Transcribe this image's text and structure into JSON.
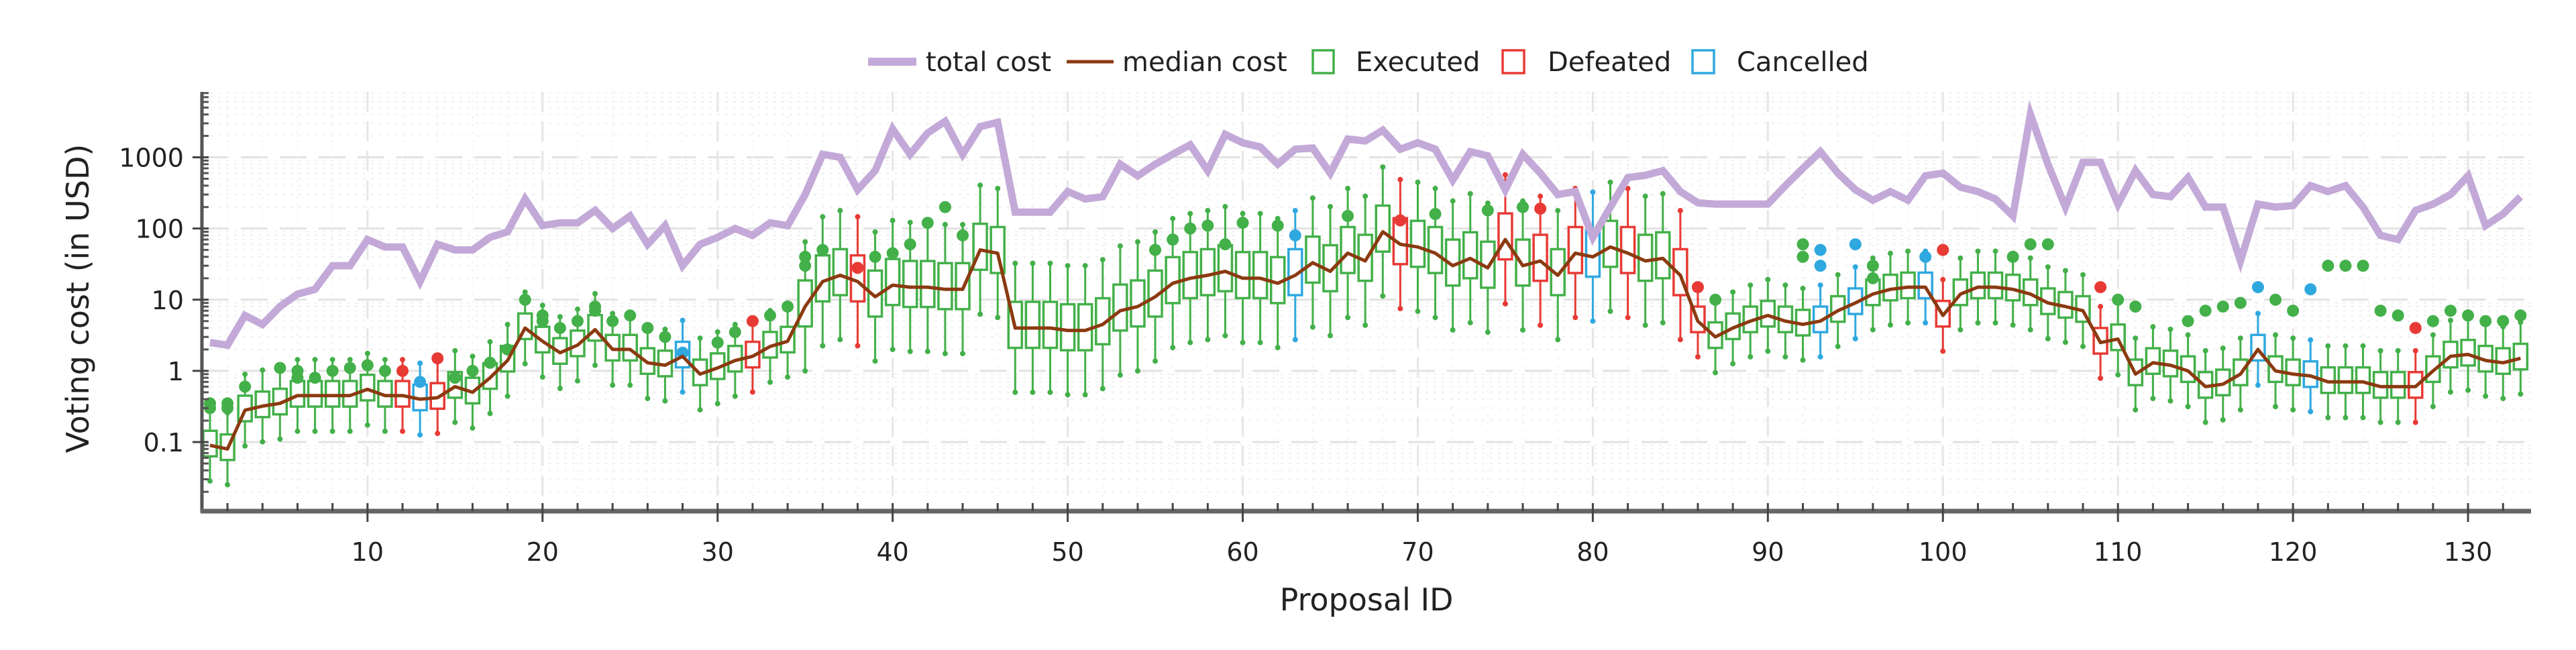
{
  "chart_data": {
    "type": "box+line",
    "title": "",
    "xlabel": "Proposal ID",
    "ylabel": "Voting cost (in USD)",
    "yscale": "log",
    "xlim": [
      0.54,
      133.6
    ],
    "ylim": [
      0.0107,
      8300
    ],
    "grid": true,
    "legend_position": "top-center",
    "x_ticks": [
      10,
      20,
      30,
      40,
      50,
      60,
      70,
      80,
      90,
      100,
      110,
      120,
      130
    ],
    "x_tick_labels": [
      "10",
      "20",
      "30",
      "40",
      "50",
      "60",
      "70",
      "80",
      "90",
      "100",
      "110",
      "120",
      "130"
    ],
    "y_ticks": [
      0.1,
      1,
      10,
      100,
      1000
    ],
    "y_tick_labels": [
      "0.1",
      "1",
      "10",
      "100",
      "1000"
    ],
    "legend": [
      {
        "key": "total",
        "label": "total cost",
        "kind": "line",
        "color": "#c3a9d8"
      },
      {
        "key": "median",
        "label": "median cost",
        "kind": "line",
        "color": "#8b3a10"
      },
      {
        "key": "Executed",
        "label": "Executed",
        "kind": "box",
        "color": "#43b049"
      },
      {
        "key": "Defeated",
        "label": "Defeated",
        "kind": "box",
        "color": "#e83a35"
      },
      {
        "key": "Cancelled",
        "label": "Cancelled",
        "kind": "box",
        "color": "#2fa8e0"
      }
    ],
    "total_cost": [
      2.5,
      2.3,
      6,
      4.5,
      8,
      12,
      14,
      30,
      30,
      70,
      55,
      55,
      18,
      60,
      50,
      50,
      75,
      90,
      260,
      110,
      120,
      120,
      180,
      100,
      150,
      60,
      110,
      30,
      60,
      75,
      100,
      80,
      120,
      110,
      300,
      1100,
      1000,
      350,
      650,
      2500,
      1100,
      2200,
      3200,
      1100,
      2700,
      3100,
      170,
      170,
      170,
      330,
      260,
      280,
      800,
      550,
      800,
      1100,
      1500,
      650,
      2100,
      1600,
      1400,
      800,
      1300,
      1350,
      600,
      1800,
      1700,
      2400,
      1300,
      1600,
      1300,
      480,
      1200,
      1050,
      350,
      1100,
      600,
      300,
      330,
      75,
      200,
      520,
      560,
      650,
      330,
      230,
      220,
      220,
      220,
      220,
      400,
      700,
      1200,
      600,
      350,
      250,
      330,
      250,
      550,
      600,
      380,
      330,
      260,
      150,
      4000,
      800,
      200,
      850,
      850,
      220,
      650,
      300,
      280,
      520,
      200,
      200,
      35,
      220,
      200,
      210,
      400,
      330,
      400,
      200,
      80,
      70,
      180,
      220,
      300,
      550,
      110,
      160,
      280
    ],
    "median_cost": [
      0.09,
      0.08,
      0.28,
      0.32,
      0.35,
      0.45,
      0.45,
      0.45,
      0.45,
      0.55,
      0.45,
      0.45,
      0.4,
      0.42,
      0.6,
      0.5,
      0.8,
      1.4,
      4,
      2.6,
      1.8,
      2.3,
      3.8,
      2,
      2,
      1.3,
      1.2,
      1.6,
      0.9,
      1.1,
      1.4,
      1.6,
      2.2,
      2.6,
      8,
      18,
      22,
      18,
      11,
      16,
      15,
      15,
      14,
      14,
      50,
      45,
      4,
      4,
      4,
      3.7,
      3.7,
      4.5,
      7,
      8,
      11,
      17,
      20,
      22,
      25,
      20,
      20,
      17,
      22,
      33,
      25,
      45,
      35,
      90,
      60,
      55,
      45,
      30,
      38,
      28,
      70,
      30,
      35,
      22,
      45,
      40,
      55,
      45,
      35,
      38,
      22,
      5,
      3,
      4,
      5,
      6,
      5,
      4.5,
      5,
      7,
      9,
      12,
      14,
      15,
      15,
      6,
      12,
      15,
      15,
      14,
      12,
      9,
      8,
      7,
      2.5,
      2.8,
      0.9,
      1.3,
      1.2,
      1.0,
      0.6,
      0.65,
      0.9,
      2,
      1.0,
      0.9,
      0.85,
      0.7,
      0.7,
      0.7,
      0.6,
      0.6,
      0.6,
      1.0,
      1.6,
      1.7,
      1.4,
      1.3,
      1.5
    ],
    "status": {
      "Defeated": [
        12,
        14,
        32,
        38,
        69,
        75,
        77,
        79,
        82,
        85,
        86,
        100,
        109,
        127
      ],
      "Cancelled": [
        13,
        28,
        63,
        80,
        93,
        95,
        99,
        118,
        121
      ]
    },
    "box_spread": {
      "note_q1_factor": 0.7,
      "note_q3_factor": 1.6
    },
    "outliers": {
      "1": [
        0.3,
        0.35
      ],
      "2": [
        0.3,
        0.35
      ],
      "3": [
        0.6
      ],
      "5": [
        1.1
      ],
      "6": [
        0.8,
        1.0
      ],
      "7": [
        0.8
      ],
      "8": [
        1.0
      ],
      "9": [
        1.1
      ],
      "10": [
        1.2
      ],
      "11": [
        1.0
      ],
      "12": [
        1.0
      ],
      "13": [
        0.7
      ],
      "14": [
        1.5
      ],
      "15": [
        0.8
      ],
      "16": [
        1.0
      ],
      "17": [
        1.3
      ],
      "18": [
        2.0
      ],
      "19": [
        10
      ],
      "20": [
        5,
        6
      ],
      "21": [
        4
      ],
      "22": [
        5
      ],
      "23": [
        7,
        8
      ],
      "24": [
        5
      ],
      "25": [
        6
      ],
      "26": [
        4
      ],
      "27": [
        3
      ],
      "28": [
        1.8
      ],
      "30": [
        2.5
      ],
      "31": [
        3.5
      ],
      "32": [
        5
      ],
      "33": [
        6
      ],
      "34": [
        8
      ],
      "35": [
        30,
        40
      ],
      "36": [
        50
      ],
      "38": [
        28
      ],
      "39": [
        40
      ],
      "40": [
        45
      ],
      "41": [
        60
      ],
      "42": [
        120
      ],
      "43": [
        200
      ],
      "44": [
        80
      ],
      "55": [
        50
      ],
      "56": [
        70
      ],
      "57": [
        100
      ],
      "58": [
        110
      ],
      "59": [
        60
      ],
      "60": [
        120
      ],
      "62": [
        110
      ],
      "63": [
        80
      ],
      "66": [
        150
      ],
      "69": [
        130
      ],
      "71": [
        160
      ],
      "74": [
        180
      ],
      "76": [
        200
      ],
      "77": [
        190
      ],
      "86": [
        15
      ],
      "87": [
        10
      ],
      "92": [
        40,
        60
      ],
      "93": [
        30,
        50
      ],
      "95": [
        60
      ],
      "96": [
        20,
        30
      ],
      "99": [
        40
      ],
      "100": [
        50
      ],
      "104": [
        40
      ],
      "105": [
        60
      ],
      "106": [
        60
      ],
      "109": [
        15
      ],
      "110": [
        10
      ],
      "111": [
        8
      ],
      "114": [
        5
      ],
      "115": [
        7
      ],
      "116": [
        8
      ],
      "117": [
        9
      ],
      "118": [
        15
      ],
      "119": [
        10
      ],
      "120": [
        7
      ],
      "121": [
        14
      ],
      "122": [
        30
      ],
      "123": [
        30
      ],
      "124": [
        30
      ],
      "125": [
        7
      ],
      "126": [
        6
      ],
      "127": [
        4
      ],
      "128": [
        5
      ],
      "129": [
        7
      ],
      "130": [
        6
      ],
      "131": [
        5
      ],
      "132": [
        5
      ],
      "133": [
        6
      ]
    }
  }
}
